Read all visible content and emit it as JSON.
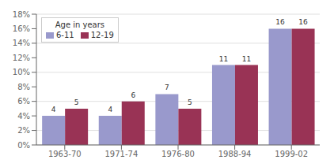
{
  "chart_data": {
    "type": "bar",
    "categories": [
      "1963-70",
      "1971-74",
      "1976-80",
      "1988-94",
      "1999-02"
    ],
    "series": [
      {
        "name": "6-11",
        "color": "#9999cc",
        "values": [
          4,
          4,
          7,
          11,
          16
        ]
      },
      {
        "name": "12-19",
        "color": "#993355",
        "values": [
          5,
          6,
          5,
          11,
          16
        ]
      }
    ],
    "ylim": [
      0,
      18
    ],
    "yticks": [
      {
        "value": 0,
        "label": "0%"
      },
      {
        "value": 2,
        "label": "2%"
      },
      {
        "value": 4,
        "label": "4%"
      },
      {
        "value": 6,
        "label": "6%"
      },
      {
        "value": 8,
        "label": "8%"
      },
      {
        "value": 10,
        "label": "10%"
      },
      {
        "value": 12,
        "label": "12%"
      },
      {
        "value": 14,
        "label": "14%"
      },
      {
        "value": 16,
        "label": "16%"
      },
      {
        "value": 18,
        "label": "18%"
      }
    ],
    "grid": true,
    "legend": "upper left",
    "legend_title": "Age in years",
    "data_labels": true
  }
}
